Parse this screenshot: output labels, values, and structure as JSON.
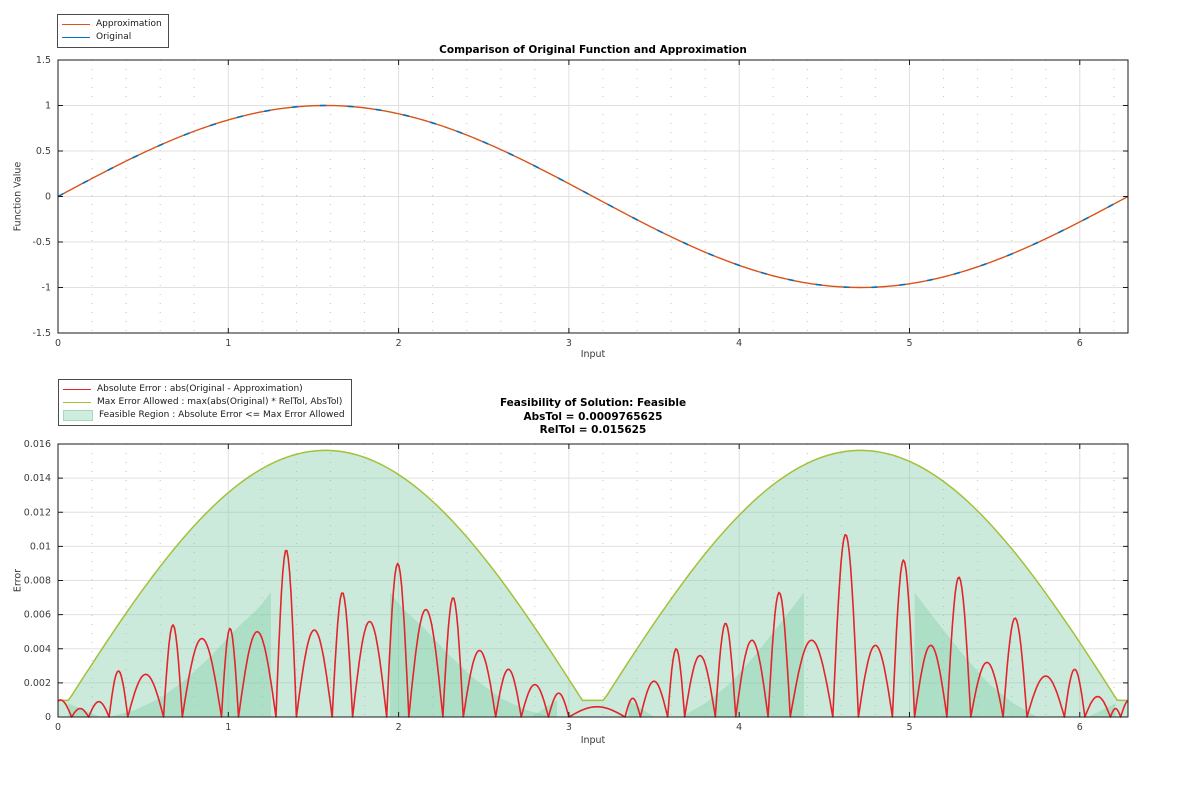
{
  "figure": {
    "background": "#ffffff",
    "text_color": "#383838",
    "axis_color": "#1a1a1a",
    "major_grid_color": "#e0e0e0",
    "minor_grid_color": "#c4c4c4"
  },
  "chart_data": [
    {
      "type": "line",
      "title": "Comparison of Original Function and Approximation",
      "xlabel": "Input",
      "ylabel": "Function Value",
      "xlim": [
        0,
        6.2832
      ],
      "ylim": [
        -1.5,
        1.5
      ],
      "x_tick_values": [
        0,
        1,
        2,
        3,
        4,
        5,
        6
      ],
      "x_tick_labels": [
        "0",
        "1",
        "2",
        "3",
        "4",
        "5",
        "6"
      ],
      "y_tick_values": [
        -1.5,
        -1,
        -0.5,
        0,
        0.5,
        1,
        1.5
      ],
      "y_tick_labels": [
        "-1.5",
        "-1",
        "-0.5",
        "0",
        "0.5",
        "1",
        "1.5"
      ],
      "grid": "major solid, minor dotted vertical every 0.2",
      "legend_position": "outside top-left",
      "legend": [
        {
          "label": "Approximation",
          "color": "#D95319",
          "swatch": "line"
        },
        {
          "label": "Original",
          "color": "#0072BD",
          "swatch": "line"
        }
      ],
      "series": [
        {
          "name": "Approximation",
          "color": "#D95319",
          "function": "sin(x) (approximation, overlays original)"
        },
        {
          "name": "Original",
          "color": "#0072BD",
          "function": "sin(x)",
          "note": "visible as short dashes beneath the approximation curve"
        }
      ]
    },
    {
      "type": "area",
      "title_lines": [
        "Feasibility of Solution: Feasible",
        "AbsTol = 0.0009765625",
        "RelTol = 0.015625"
      ],
      "abs_tol": 0.0009765625,
      "rel_tol": 0.015625,
      "xlabel": "Input",
      "ylabel": "Error",
      "xlim": [
        0,
        6.2832
      ],
      "ylim": [
        0,
        0.016
      ],
      "x_tick_values": [
        0,
        1,
        2,
        3,
        4,
        5,
        6
      ],
      "x_tick_labels": [
        "0",
        "1",
        "2",
        "3",
        "4",
        "5",
        "6"
      ],
      "y_tick_values": [
        0,
        0.002,
        0.004,
        0.006,
        0.008,
        0.01,
        0.012,
        0.014,
        0.016
      ],
      "y_tick_labels": [
        "0",
        "0.002",
        "0.004",
        "0.006",
        "0.008",
        "0.01",
        "0.012",
        "0.014",
        "0.016"
      ],
      "legend_position": "outside top-left",
      "legend": [
        {
          "label": "Absolute Error : abs(Original - Approximation)",
          "color": "#E3242B",
          "swatch": "line"
        },
        {
          "label": "Max Error Allowed : max(abs(Original) * RelTol, AbsTol)",
          "color": "#A2C139",
          "swatch": "line"
        },
        {
          "label": "Feasible Region : Absolute Error <= Max Error Allowed",
          "color": "#CFEDDE",
          "swatch": "patch"
        }
      ],
      "max_error_line": {
        "color": "#A2C139",
        "formula": "max(0.015625 * abs(sin(x)), 0.0009765625)",
        "peak_value": 0.015625,
        "floor_value": 0.0009765625
      },
      "feasible_region": {
        "fill_color": "#82CDAA",
        "fill_alpha": 0.42,
        "bounded_above_by": "max_error_line",
        "overlap_regions": [
          [
            [
              0.06,
              0
            ],
            [
              0.06,
              0.0008
            ],
            [
              0.25,
              0
            ]
          ],
          [
            [
              0.3,
              0
            ],
            [
              0.45,
              0.0004
            ],
            [
              0.6,
              0.0011
            ],
            [
              0.75,
              0.0022
            ],
            [
              0.9,
              0.0036
            ],
            [
              1.05,
              0.0052
            ],
            [
              1.18,
              0.0064
            ],
            [
              1.25,
              0.0073
            ],
            [
              1.25,
              0
            ]
          ],
          [
            [
              1.95,
              0
            ],
            [
              1.95,
              0.0073
            ],
            [
              2.02,
              0.0064
            ],
            [
              2.15,
              0.0052
            ],
            [
              2.3,
              0.0036
            ],
            [
              2.45,
              0.0022
            ],
            [
              2.6,
              0.0011
            ],
            [
              2.75,
              0.0004
            ],
            [
              2.9,
              0
            ]
          ],
          [
            [
              2.78,
              0
            ],
            [
              2.93,
              0.001
            ],
            [
              2.93,
              0
            ]
          ],
          [
            [
              3.35,
              0
            ],
            [
              3.35,
              0.001
            ],
            [
              3.5,
              0
            ]
          ],
          [
            [
              3.66,
              0
            ],
            [
              3.8,
              0.0008
            ],
            [
              3.95,
              0.002
            ],
            [
              4.1,
              0.0037
            ],
            [
              4.25,
              0.0056
            ],
            [
              4.38,
              0.0073
            ],
            [
              4.38,
              0
            ]
          ],
          [
            [
              5.03,
              0
            ],
            [
              5.03,
              0.0073
            ],
            [
              5.16,
              0.0056
            ],
            [
              5.31,
              0.0037
            ],
            [
              5.46,
              0.002
            ],
            [
              5.61,
              0.0008
            ],
            [
              5.75,
              0
            ]
          ],
          [
            [
              6.05,
              0
            ],
            [
              6.21,
              0.0008
            ],
            [
              6.21,
              0
            ]
          ]
        ]
      },
      "absolute_error": {
        "color": "#E3242B",
        "shape": "sequence of half-sine humps [x_start, x_end, peak]",
        "humps": [
          [
            -0.05,
            0.08,
            0.001
          ],
          [
            0.08,
            0.18,
            0.0005
          ],
          [
            0.18,
            0.3,
            0.0009
          ],
          [
            0.3,
            0.41,
            0.0027
          ],
          [
            0.41,
            0.62,
            0.0025
          ],
          [
            0.62,
            0.73,
            0.0054
          ],
          [
            0.73,
            0.96,
            0.0046
          ],
          [
            0.96,
            1.06,
            0.0052
          ],
          [
            1.06,
            1.28,
            0.005
          ],
          [
            1.28,
            1.4,
            0.0098
          ],
          [
            1.4,
            1.61,
            0.0051
          ],
          [
            1.61,
            1.73,
            0.0073
          ],
          [
            1.73,
            1.93,
            0.0056
          ],
          [
            1.93,
            2.06,
            0.009
          ],
          [
            2.06,
            2.26,
            0.0063
          ],
          [
            2.26,
            2.38,
            0.007
          ],
          [
            2.38,
            2.57,
            0.0039
          ],
          [
            2.57,
            2.72,
            0.0028
          ],
          [
            2.72,
            2.88,
            0.0019
          ],
          [
            2.88,
            3.0,
            0.0014
          ],
          [
            3.0,
            3.33,
            0.0006
          ],
          [
            3.33,
            3.42,
            0.0011
          ],
          [
            3.42,
            3.58,
            0.0021
          ],
          [
            3.58,
            3.68,
            0.004
          ],
          [
            3.68,
            3.86,
            0.0036
          ],
          [
            3.86,
            3.98,
            0.0055
          ],
          [
            3.98,
            4.17,
            0.0045
          ],
          [
            4.17,
            4.3,
            0.0073
          ],
          [
            4.3,
            4.55,
            0.0045
          ],
          [
            4.55,
            4.7,
            0.0107
          ],
          [
            4.7,
            4.9,
            0.0042
          ],
          [
            4.9,
            5.03,
            0.0092
          ],
          [
            5.03,
            5.22,
            0.0042
          ],
          [
            5.22,
            5.36,
            0.0082
          ],
          [
            5.36,
            5.55,
            0.0032
          ],
          [
            5.55,
            5.69,
            0.0058
          ],
          [
            5.69,
            5.91,
            0.0024
          ],
          [
            5.91,
            6.03,
            0.0028
          ],
          [
            6.03,
            6.18,
            0.0012
          ],
          [
            6.18,
            6.24,
            0.0005
          ],
          [
            6.24,
            6.34,
            0.001
          ]
        ]
      }
    }
  ]
}
